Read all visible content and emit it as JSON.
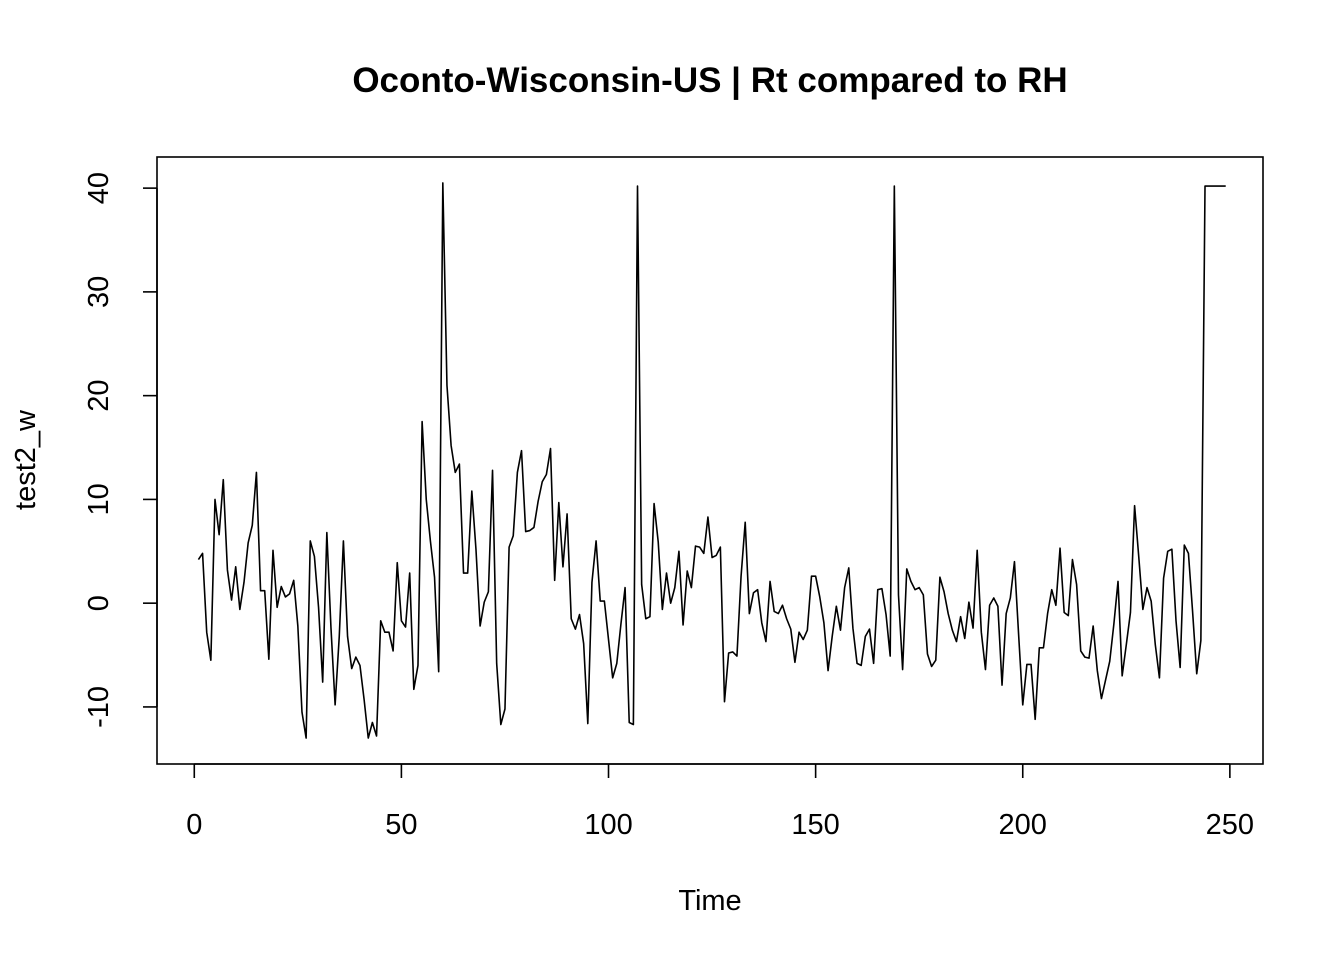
{
  "chart_data": {
    "type": "line",
    "title": "Oconto-Wisconsin-US | Rt compared to RH",
    "xlabel": "Time",
    "ylabel": "test2_w",
    "xlim": [
      -9,
      258
    ],
    "ylim": [
      -15.5,
      43
    ],
    "xticks": [
      0,
      50,
      100,
      150,
      200,
      250
    ],
    "yticks": [
      -10,
      0,
      10,
      20,
      30,
      40
    ],
    "grid": false,
    "legend": "none",
    "line_color": "#000000",
    "series": [
      {
        "values": [
          4.2,
          4.8,
          -2.8,
          -5.5,
          10,
          6.6,
          11.9,
          3.2,
          0.3,
          3.5,
          -0.6,
          2.0,
          5.8,
          7.5,
          12.6,
          1.2,
          1.2,
          -5.4,
          5.1,
          -0.4,
          1.6,
          0.6,
          0.9,
          2.2,
          -2.2,
          -10.5,
          -13.0,
          6.0,
          4.5,
          -0.4,
          -7.6,
          6.8,
          -2.4,
          -9.8,
          -3.2,
          6.0,
          -3.2,
          -6.3,
          -5.2,
          -6.0,
          -9.3,
          -13.0,
          -11.5,
          -12.8,
          -1.7,
          -2.8,
          -2.8,
          -4.6,
          3.9,
          -1.7,
          -2.3,
          2.9,
          -8.3,
          -6.0,
          17.5,
          10.0,
          6.0,
          2.5,
          -6.6,
          40.5,
          21.0,
          15.2,
          12.6,
          13.4,
          2.9,
          2.9,
          10.8,
          5.2,
          -2.2,
          0.1,
          1.1,
          12.8,
          -5.8,
          -11.7,
          -10.2,
          5.4,
          6.5,
          12.6,
          14.7,
          6.9,
          7.0,
          7.3,
          9.8,
          11.7,
          12.4,
          14.9,
          2.2,
          9.7,
          3.5,
          8.6,
          -1.5,
          -2.5,
          -1.1,
          -3.9,
          -11.6,
          2.0,
          6.0,
          0.2,
          0.2,
          -3.5,
          -7.2,
          -5.8,
          -2.0,
          1.5,
          -11.5,
          -11.7,
          40.2,
          1.8,
          -1.5,
          -1.3,
          9.6,
          5.9,
          -0.6,
          2.9,
          0.0,
          1.5,
          5.0,
          -2.1,
          3.1,
          1.5,
          5.5,
          5.4,
          4.8,
          8.3,
          4.4,
          4.6,
          5.4,
          -9.5,
          -4.8,
          -4.7,
          -5.1,
          2.6,
          7.8,
          -1.0,
          1.0,
          1.3,
          -1.9,
          -3.7,
          2.1,
          -0.8,
          -1.0,
          -0.2,
          -1.5,
          -2.5,
          -5.7,
          -2.8,
          -3.5,
          -2.6,
          2.6,
          2.6,
          0.6,
          -1.9,
          -6.5,
          -3.2,
          -0.3,
          -2.6,
          1.5,
          3.4,
          -2.4,
          -5.8,
          -6.0,
          -3.2,
          -2.5,
          -5.8,
          1.3,
          1.4,
          -1.1,
          -5.1,
          40.2,
          0.8,
          -6.4,
          3.3,
          2.1,
          1.3,
          1.5,
          0.8,
          -4.9,
          -6.1,
          -5.5,
          2.5,
          1.1,
          -1.0,
          -2.6,
          -3.7,
          -1.3,
          -3.4,
          0.1,
          -2.4,
          5.1,
          -2.8,
          -6.4,
          -0.2,
          0.5,
          -0.3,
          -7.9,
          -1.0,
          0.5,
          4.0,
          -3.0,
          -9.8,
          -5.9,
          -5.9,
          -11.2,
          -4.3,
          -4.3,
          -1.0,
          1.3,
          -0.2,
          5.3,
          -0.9,
          -1.2,
          4.2,
          1.8,
          -4.6,
          -5.2,
          -5.3,
          -2.2,
          -6.5,
          -9.2,
          -7.4,
          -5.6,
          -2.0,
          2.1,
          -7.0,
          -4.0,
          -0.9,
          9.4,
          4.5,
          -0.6,
          1.5,
          0.2,
          -4.0,
          -7.2,
          2.4,
          5.0,
          5.2,
          -1.7,
          -6.2,
          5.6,
          4.8,
          -0.8,
          -6.8,
          -3.6,
          40.2,
          40.2,
          40.2,
          40.2,
          40.2,
          40.2
        ]
      }
    ]
  }
}
